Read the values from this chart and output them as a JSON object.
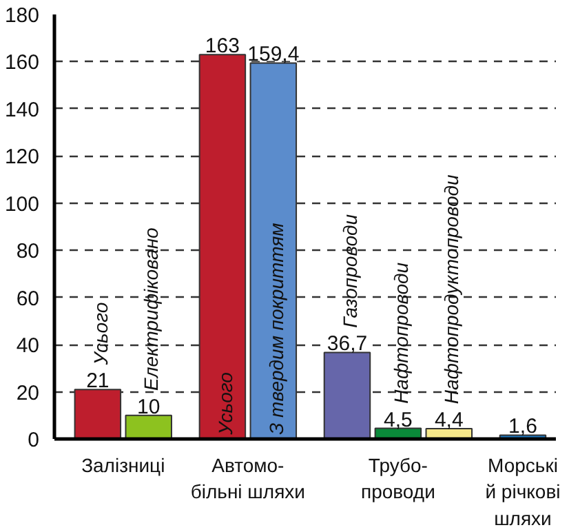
{
  "chart_data": {
    "type": "bar",
    "categories": [
      "Залізниці",
      "Автомо-\nбільні шляхи",
      "Трубо-\nпроводи",
      "Морські\nй річкові\nшляхи"
    ],
    "series": [
      {
        "name": "Усього",
        "color": "#be1e2d",
        "values": [
          21,
          null,
          null,
          null
        ],
        "value_labels": [
          "21",
          null,
          null,
          null
        ]
      },
      {
        "name": "Електрифіковано",
        "color": "#8dc21f",
        "values": [
          10,
          null,
          null,
          null
        ],
        "value_labels": [
          "10",
          null,
          null,
          null
        ]
      },
      {
        "name": "Усього",
        "color": "#be1e2d",
        "values": [
          null,
          163,
          null,
          null
        ],
        "value_labels": [
          null,
          "163",
          null,
          null
        ]
      },
      {
        "name": "З твердим покриттям",
        "color": "#5b8ccc",
        "values": [
          null,
          159.4,
          null,
          null
        ],
        "value_labels": [
          null,
          "159,4",
          null,
          null
        ]
      },
      {
        "name": "Газопроводи",
        "color": "#6666aa",
        "values": [
          null,
          null,
          36.7,
          null
        ],
        "value_labels": [
          null,
          null,
          "36,7",
          null
        ]
      },
      {
        "name": "Нафтопроводи",
        "color": "#0a8a3a",
        "values": [
          null,
          null,
          4.5,
          null
        ],
        "value_labels": [
          null,
          null,
          "4,5",
          null
        ]
      },
      {
        "name": "Нафтопродуктопроводи",
        "color": "#f7e98a",
        "values": [
          null,
          null,
          4.4,
          null
        ],
        "value_labels": [
          null,
          null,
          "4,4",
          null
        ]
      },
      {
        "color": "#1c75bc",
        "values": [
          null,
          null,
          null,
          1.6
        ],
        "value_labels": [
          null,
          null,
          null,
          "1,6"
        ]
      }
    ],
    "ylim": [
      0,
      180
    ],
    "yticks": [
      0,
      20,
      40,
      60,
      80,
      100,
      120,
      140,
      160,
      180
    ],
    "grid": "y"
  }
}
